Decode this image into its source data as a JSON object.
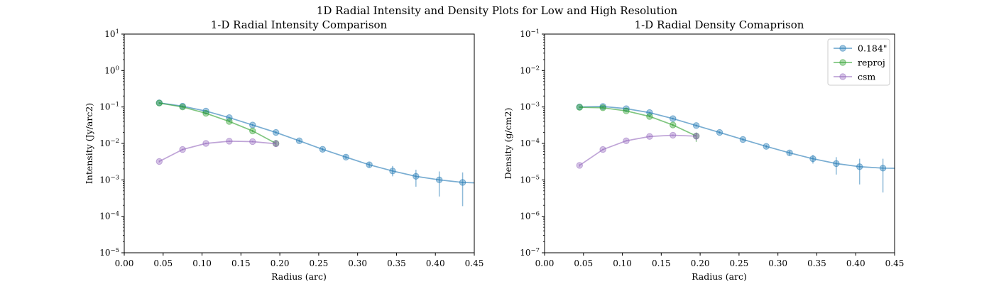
{
  "figure": {
    "suptitle": "1D Radial Intensity and Density Plots for Low and High Resolution"
  },
  "colors": {
    "blue": "#1f77b4",
    "green": "#2ca02c",
    "purple": "#9467bd"
  },
  "chart_data": [
    {
      "type": "line",
      "title": "1-D Radial Intensity Comparison",
      "xlabel": "Radius (arc)",
      "ylabel": "Intensity (Jy/arc2)",
      "xlim": [
        0.0,
        0.45
      ],
      "ylim": [
        1e-05,
        10
      ],
      "yscale": "log",
      "xticks": [
        "0.00",
        "0.05",
        "0.10",
        "0.15",
        "0.20",
        "0.25",
        "0.30",
        "0.35",
        "0.40",
        "0.45"
      ],
      "yticks": [
        -5,
        -4,
        -3,
        -2,
        -1,
        0,
        1
      ],
      "legend": null,
      "series": [
        {
          "name": "0.184\"",
          "color": "blue",
          "x": [
            0.045,
            0.075,
            0.105,
            0.135,
            0.165,
            0.195,
            0.225,
            0.255,
            0.285,
            0.315,
            0.345,
            0.375,
            0.405,
            0.435
          ],
          "y": [
            0.13,
            0.105,
            0.077,
            0.051,
            0.032,
            0.02,
            0.0118,
            0.0069,
            0.0042,
            0.0026,
            0.00175,
            0.00125,
            0.001,
            0.00085
          ],
          "yerr_low": [
            0.125,
            0.101,
            0.074,
            0.049,
            0.03,
            0.0185,
            0.0108,
            0.0062,
            0.0037,
            0.0022,
            0.00125,
            0.00065,
            0.00035,
            0.00019
          ],
          "yerr_high": [
            0.135,
            0.109,
            0.08,
            0.053,
            0.034,
            0.0215,
            0.0128,
            0.0076,
            0.0047,
            0.003,
            0.0024,
            0.0019,
            0.0017,
            0.0016
          ],
          "extend_to": 0.45,
          "extend_y": 0.00083
        },
        {
          "name": "reproj",
          "color": "green",
          "x": [
            0.045,
            0.075,
            0.105,
            0.135,
            0.165,
            0.195
          ],
          "y": [
            0.128,
            0.1,
            0.067,
            0.04,
            0.022,
            0.01
          ],
          "yerr_low": [
            0.123,
            0.097,
            0.064,
            0.038,
            0.0205,
            0.0085
          ],
          "yerr_high": [
            0.133,
            0.103,
            0.07,
            0.042,
            0.0235,
            0.0122
          ]
        },
        {
          "name": "csm",
          "color": "purple",
          "x": [
            0.045,
            0.075,
            0.105,
            0.135,
            0.165,
            0.195
          ],
          "y": [
            0.0032,
            0.0068,
            0.01,
            0.0115,
            0.0112,
            0.0098
          ],
          "yerr_low": [
            0.003,
            0.0065,
            0.0097,
            0.0111,
            0.0107,
            0.008
          ],
          "yerr_high": [
            0.0034,
            0.0071,
            0.0103,
            0.0119,
            0.0117,
            0.0125
          ]
        }
      ]
    },
    {
      "type": "line",
      "title": "1-D Radial Density Comaprison",
      "xlabel": "Radius (arc)",
      "ylabel": "Density (g/cm2)",
      "xlim": [
        0.0,
        0.45
      ],
      "ylim": [
        1e-07,
        0.1
      ],
      "yscale": "log",
      "xticks": [
        "0.00",
        "0.05",
        "0.10",
        "0.15",
        "0.20",
        "0.25",
        "0.30",
        "0.35",
        "0.40",
        "0.45"
      ],
      "yticks": [
        -7,
        -6,
        -5,
        -4,
        -3,
        -2,
        -1
      ],
      "legend": "top-right",
      "series": [
        {
          "name": "0.184\"",
          "color": "blue",
          "x": [
            0.045,
            0.075,
            0.105,
            0.135,
            0.165,
            0.195,
            0.225,
            0.255,
            0.285,
            0.315,
            0.345,
            0.375,
            0.405,
            0.435
          ],
          "y": [
            0.001,
            0.00103,
            0.0009,
            0.0007,
            0.00048,
            0.00031,
            0.0002,
            0.000128,
            8.3e-05,
            5.5e-05,
            3.8e-05,
            2.8e-05,
            2.3e-05,
            2.1e-05
          ],
          "yerr_low": [
            0.00097,
            0.001,
            0.00087,
            0.00067,
            0.00045,
            0.00029,
            0.000185,
            0.000118,
            7.5e-05,
            4.7e-05,
            2.8e-05,
            1.4e-05,
            7.5e-06,
            4.5e-06
          ],
          "yerr_high": [
            0.00103,
            0.00106,
            0.00093,
            0.00073,
            0.00051,
            0.00033,
            0.000215,
            0.000138,
            9e-05,
            6.2e-05,
            4.8e-05,
            4.2e-05,
            3.8e-05,
            3.8e-05
          ],
          "extend_to": 0.45,
          "extend_y": 2.08e-05
        },
        {
          "name": "reproj",
          "color": "green",
          "x": [
            0.045,
            0.075,
            0.105,
            0.135,
            0.165,
            0.195
          ],
          "y": [
            0.00098,
            0.00095,
            0.00078,
            0.00055,
            0.00032,
            0.00016
          ],
          "yerr_low": [
            0.00095,
            0.00092,
            0.00075,
            0.00052,
            0.0003,
            0.00011
          ],
          "yerr_high": [
            0.00101,
            0.00098,
            0.00081,
            0.00058,
            0.00034,
            0.0002
          ]
        },
        {
          "name": "csm",
          "color": "purple",
          "x": [
            0.045,
            0.075,
            0.105,
            0.135,
            0.165,
            0.195
          ],
          "y": [
            2.5e-05,
            6.8e-05,
            0.000118,
            0.000155,
            0.000168,
            0.000158
          ],
          "yerr_low": [
            2.3e-05,
            6.5e-05,
            0.000114,
            0.00015,
            0.000162,
            0.00012
          ],
          "yerr_high": [
            2.7e-05,
            7.1e-05,
            0.000122,
            0.00016,
            0.000174,
            0.000195
          ]
        }
      ]
    }
  ]
}
